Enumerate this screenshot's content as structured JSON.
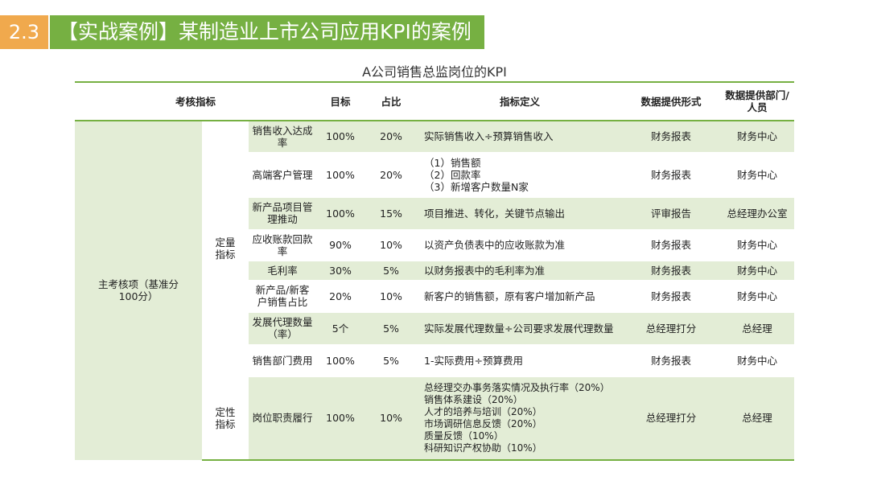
{
  "header": {
    "section_number": "2.3",
    "section_title": "【实战案例】某制造业上市公司应用KPI的案例"
  },
  "table": {
    "caption": "A公司销售总监岗位的KPI",
    "columns": {
      "kpi": "考核指标",
      "target": "目标",
      "weight": "占比",
      "definition": "指标定义",
      "data_form": "数据提供形式",
      "data_dept": "数据提供部门/人员"
    },
    "main_category": "主考核项（基准分100分）",
    "groups": {
      "quantitative": "定量指标",
      "qualitative": "定性指标"
    },
    "rows": [
      {
        "name": "销售收入达成率",
        "target": "100%",
        "weight": "20%",
        "definition": [
          "实际销售收入÷预算销售收入"
        ],
        "form": "财务报表",
        "dept": "财务中心"
      },
      {
        "name": "高端客户管理",
        "target": "100%",
        "weight": "20%",
        "definition": [
          "（1）销售额",
          "（2）回款率",
          "（3）新增客户数量N家"
        ],
        "form": "财务报表",
        "dept": "财务中心"
      },
      {
        "name": "新产品项目管理推动",
        "target": "100%",
        "weight": "15%",
        "definition": [
          "项目推进、转化，关键节点输出"
        ],
        "form": "评审报告",
        "dept": "总经理办公室"
      },
      {
        "name": "应收账款回款率",
        "target": "90%",
        "weight": "10%",
        "definition": [
          "以资产负债表中的应收账款为准"
        ],
        "form": "财务报表",
        "dept": "财务中心"
      },
      {
        "name": "毛利率",
        "target": "30%",
        "weight": "5%",
        "definition": [
          "以财务报表中的毛利率为准"
        ],
        "form": "财务报表",
        "dept": "财务中心"
      },
      {
        "name": "新产品/新客户销售占比",
        "target": "20%",
        "weight": "10%",
        "definition": [
          "新客户的销售额，原有客户增加新产品"
        ],
        "form": "财务报表",
        "dept": "财务中心"
      },
      {
        "name": "发展代理数量（率）",
        "target": "5个",
        "weight": "5%",
        "definition": [
          "实际发展代理数量÷公司要求发展代理数量"
        ],
        "form": "总经理打分",
        "dept": "总经理"
      },
      {
        "name": "销售部门费用",
        "target": "100%",
        "weight": "5%",
        "definition": [
          "1-实际费用÷预算费用"
        ],
        "form": "财务报表",
        "dept": "财务中心"
      },
      {
        "name": "岗位职责履行",
        "target": "100%",
        "weight": "10%",
        "definition": [
          "总经理交办事务落实情况及执行率（20%）",
          "销售体系建设（20%）",
          "人才的培养与培训（20%）",
          "市场调研信息反馈（20%）",
          "质量反馈（10%）",
          "科研知识产权协助（10%）"
        ],
        "form": "总经理打分",
        "dept": "总经理"
      }
    ]
  }
}
